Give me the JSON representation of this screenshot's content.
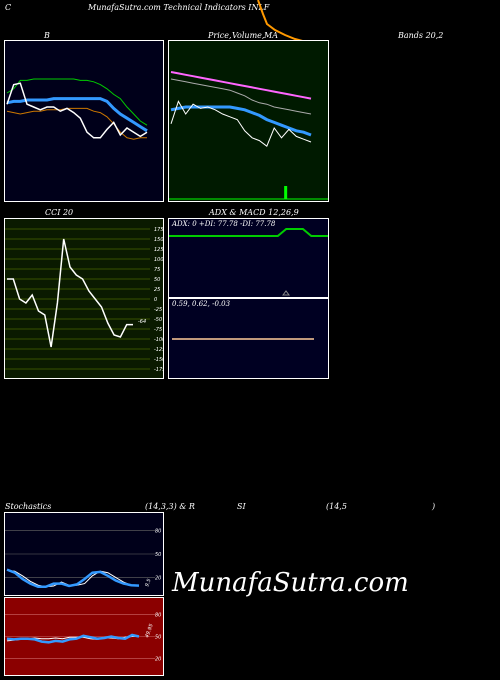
{
  "header": {
    "left_letter": "C",
    "title": "MunafaSutra.com  Technical Indicators INLF"
  },
  "labels": {
    "bollinger_left": "B",
    "price_label": "Price,",
    "volume_label": "Volume,",
    "ma_label": "MA",
    "bands_label": "Bands 20,2",
    "cci_label": "CCI 20",
    "adx_macd_label": "ADX  & MACD 12,26,9",
    "adx_values": "ADX: 0  +DI: 77.78  -DI: 77.78",
    "macd_values": "0.59,  0.62,  -0.03",
    "stoch_label": "Stochastics",
    "stoch_params": "(14,3,3) & R",
    "rsi_label": "SI",
    "rsi_params": "(14,5",
    "rsi_close": ")",
    "watermark": "MunafaSutra.com",
    "cci_current": "-64",
    "stoch_current": "9.5",
    "rsi_current": "49.95"
  },
  "colors": {
    "bollinger_bg": "#00001a",
    "price_bg": "#001a00",
    "stoch_bg": "#00001a",
    "rsi_bg": "#8b0000",
    "upper_band": "#00cc00",
    "lower_band": "#cc7700",
    "mid_band": "#3399ff",
    "price": "#ffffff",
    "ma_pink": "#ff66ff",
    "volume": "#00ff00",
    "adx_plus": "#00cc00",
    "macd_line": "#ffcc99"
  },
  "chart_data": [
    {
      "type": "line",
      "id": "bollinger",
      "ylim": [
        0,
        10
      ],
      "series": [
        {
          "values": [
            7.0,
            7.3,
            7.9,
            7.9,
            8.0,
            8.0,
            8.0,
            8.0,
            8.0,
            8.0,
            8.0,
            7.9,
            7.9,
            7.8,
            7.6,
            7.3,
            6.9,
            6.6,
            6.0,
            5.5,
            5.0,
            4.7
          ]
        },
        {
          "values": [
            6.3,
            6.4,
            6.4,
            6.5,
            6.5,
            6.5,
            6.5,
            6.6,
            6.6,
            6.6,
            6.6,
            6.6,
            6.6,
            6.6,
            6.6,
            6.4,
            5.9,
            5.5,
            5.2,
            4.9,
            4.6,
            4.3
          ]
        },
        {
          "values": [
            5.7,
            5.6,
            5.5,
            5.6,
            5.7,
            5.7,
            5.8,
            5.8,
            5.8,
            5.9,
            5.9,
            5.9,
            5.9,
            5.7,
            5.6,
            5.3,
            4.8,
            4.2,
            3.8,
            3.7,
            3.8,
            3.8
          ]
        },
        {
          "values": [
            6.2,
            7.6,
            7.7,
            6.2,
            6.0,
            5.8,
            6.0,
            6.0,
            5.7,
            5.9,
            5.6,
            5.2,
            4.2,
            3.8,
            3.8,
            4.4,
            4.9,
            4.0,
            4.5,
            4.2,
            3.9,
            4.2
          ]
        }
      ]
    },
    {
      "type": "line",
      "id": "price_ma",
      "ylim": [
        0,
        10
      ],
      "series": [
        {
          "values": [
            8.5,
            8.4,
            8.3,
            8.2,
            8.1,
            8.0,
            7.9,
            7.8,
            7.7,
            7.6,
            7.5,
            7.4,
            7.3,
            7.2,
            7.1,
            7.0,
            6.9,
            6.8,
            6.7,
            6.6
          ]
        },
        {
          "values": [
            8.0,
            7.9,
            7.8,
            7.7,
            7.6,
            7.5,
            7.4,
            7.3,
            7.2,
            7.0,
            6.8,
            6.5,
            6.3,
            6.2,
            6.0,
            5.9,
            5.8,
            5.7,
            5.6,
            5.5
          ]
        },
        {
          "values": [
            5.8,
            5.9,
            6.0,
            6.0,
            6.0,
            6.0,
            6.0,
            6.0,
            6.0,
            5.9,
            5.8,
            5.6,
            5.4,
            5.1,
            4.9,
            4.7,
            4.5,
            4.3,
            4.2,
            4.0
          ]
        },
        {
          "values": [
            4.8,
            6.4,
            5.5,
            6.2,
            5.9,
            6.0,
            5.8,
            5.5,
            5.3,
            5.1,
            4.3,
            3.8,
            3.6,
            3.2,
            4.5,
            3.8,
            4.4,
            3.9,
            3.7,
            3.5
          ]
        }
      ],
      "volume": [
        0,
        0,
        0,
        0,
        0,
        0,
        0,
        0,
        0,
        0,
        0,
        0,
        0,
        0,
        1,
        0,
        0,
        0,
        0,
        0
      ]
    },
    {
      "type": "line",
      "id": "cci",
      "ylim": [
        -175,
        175
      ],
      "yticks": [
        175,
        150,
        125,
        100,
        75,
        50,
        25,
        0,
        -25,
        -50,
        -75,
        -100,
        -125,
        -150,
        -175
      ],
      "series": [
        {
          "values": [
            50,
            50,
            0,
            -10,
            10,
            -30,
            -40,
            -120,
            -10,
            150,
            80,
            60,
            50,
            20,
            0,
            -20,
            -60,
            -90,
            -95,
            -64,
            -64
          ]
        }
      ]
    },
    {
      "type": "line",
      "id": "adx",
      "series": [
        {
          "name": "+DI",
          "values": [
            77.78,
            77.78,
            77.78,
            77.78,
            77.78,
            77.78,
            77.78,
            77.78,
            77.78,
            77.78,
            77.78,
            77.78,
            77.78,
            77.78,
            100,
            100,
            100,
            77.78,
            77.78,
            77.78
          ]
        }
      ]
    },
    {
      "type": "line",
      "id": "macd",
      "series": [
        {
          "values": [
            0.59,
            0.59,
            0.59,
            0.59,
            0.59,
            0.59,
            0.59,
            0.59,
            0.59,
            0.59,
            0.59,
            0.59,
            0.59,
            0.59,
            0.59,
            0.59,
            0.59,
            0.59,
            0.59,
            0.59
          ]
        }
      ]
    },
    {
      "type": "line",
      "id": "stochastics",
      "ylim": [
        0,
        100
      ],
      "yticks": [
        80,
        50,
        20
      ],
      "series": [
        {
          "values": [
            29,
            28,
            22,
            15,
            10,
            8,
            9,
            14,
            10,
            10,
            12,
            22,
            28,
            26,
            20,
            14,
            10,
            9.5
          ]
        },
        {
          "values": [
            30,
            26,
            18,
            12,
            8,
            8,
            12,
            12,
            9,
            11,
            18,
            26,
            27,
            22,
            16,
            12,
            10,
            9.5
          ]
        }
      ]
    },
    {
      "type": "line",
      "id": "rsi",
      "ylim": [
        0,
        100
      ],
      "yticks": [
        80,
        50,
        20
      ],
      "series": [
        {
          "values": [
            44,
            45,
            46,
            47,
            48,
            47,
            47,
            48,
            47,
            49,
            49,
            49,
            47,
            46,
            48,
            48,
            47,
            49,
            50,
            50
          ]
        },
        {
          "values": [
            47,
            46,
            47,
            47,
            46,
            43,
            42,
            44,
            43,
            46,
            47,
            51,
            49,
            47,
            48,
            50,
            48,
            47,
            52,
            50
          ]
        }
      ]
    }
  ]
}
